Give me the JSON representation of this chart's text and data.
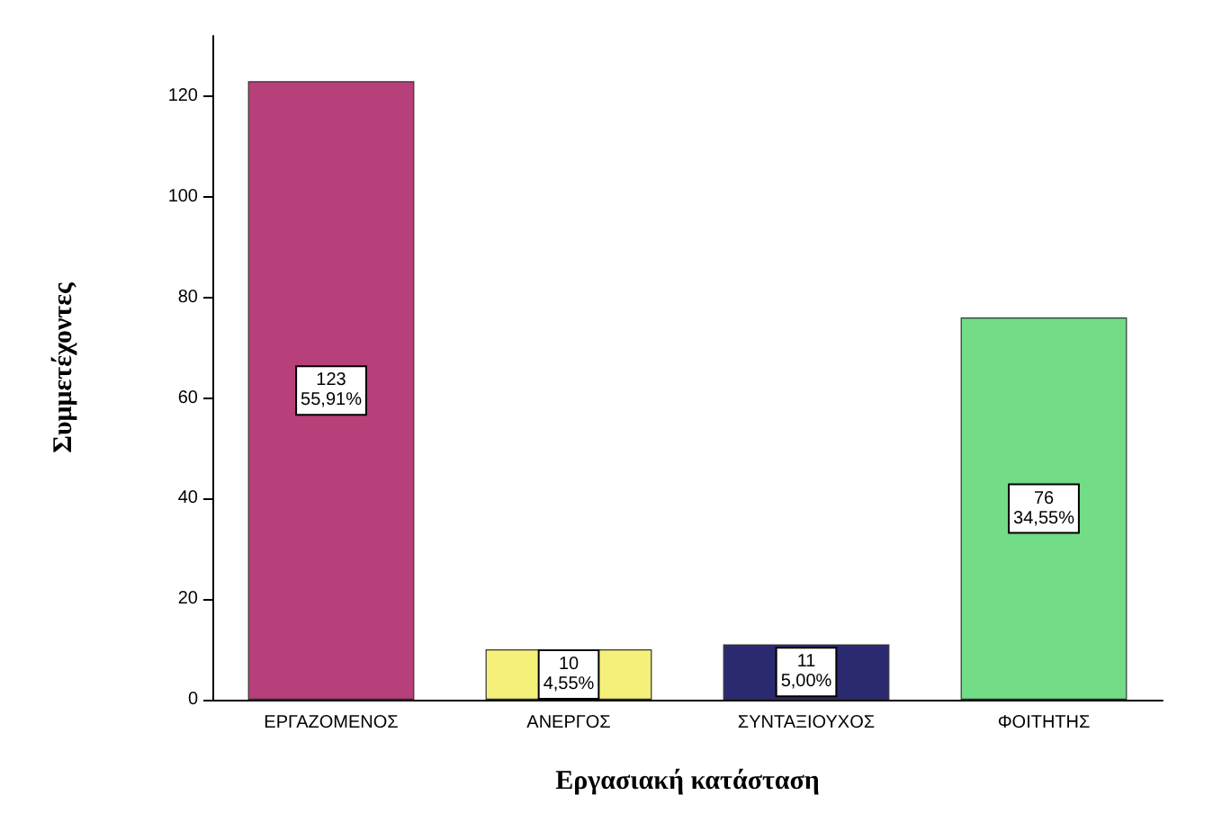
{
  "chart_data": {
    "type": "bar",
    "xlabel": "Εργασιακή κατάσταση",
    "ylabel": "Συμμετέχοντες",
    "categories": [
      "ΕΡΓΑΖΟΜΕΝΟΣ",
      "ΑΝΕΡΓΟΣ",
      "ΣΥΝΤΑΞΙΟΥΧΟΣ",
      "ΦΟΙΤΗΤΗΣ"
    ],
    "values": [
      123,
      10,
      11,
      76
    ],
    "colors": [
      "#b8407a",
      "#f5f07a",
      "#2b2a70",
      "#72dc86"
    ],
    "value_labels": [
      "123\n55,91%",
      "10\n4,55%",
      "11\n5,00%",
      "76\n34,55%"
    ],
    "ylim": [
      0,
      132
    ],
    "yticks": [
      0,
      20,
      40,
      60,
      80,
      100,
      120
    ],
    "grid": false
  }
}
